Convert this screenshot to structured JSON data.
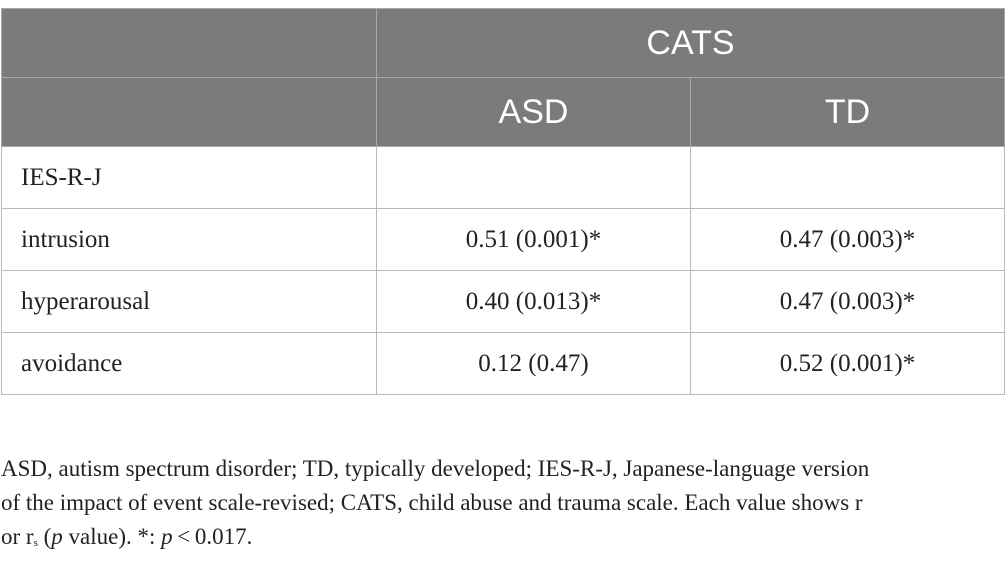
{
  "table": {
    "header": {
      "group_label": "CATS",
      "col_asd": "ASD",
      "col_td": "TD"
    },
    "rows": [
      {
        "label": "IES-R-J",
        "asd": "",
        "td": ""
      },
      {
        "label": "intrusion",
        "asd": "0.51 (0.001)*",
        "td": "0.47 (0.003)*"
      },
      {
        "label": "hyperarousal",
        "asd": "0.40 (0.013)*",
        "td": "0.47 (0.003)*"
      },
      {
        "label": "avoidance",
        "asd": "0.12 (0.47)",
        "td": "0.52 (0.001)*"
      }
    ]
  },
  "footnote": {
    "line1": "ASD, autism spectrum disorder; TD, typically developed; IES-R-J, Japanese-language version",
    "line2": "of the impact of event scale-revised; CATS, child abuse and trauma scale. Each value shows r",
    "line3_prefix": "or r",
    "line3_sub": "s",
    "line3_open": " (",
    "line3_p": "p",
    "line3_mid": " value). *: ",
    "line3_p2": "p",
    "line3_end": " < 0.017."
  }
}
